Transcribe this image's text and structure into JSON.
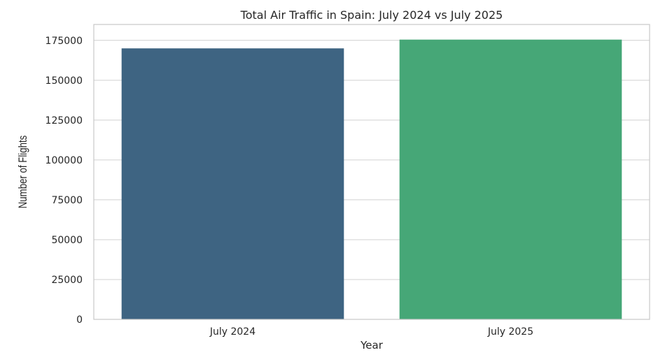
{
  "chart_data": {
    "type": "bar",
    "title": "Total Air Traffic in Spain: July 2024 vs July 2025",
    "xlabel": "Year",
    "ylabel": "Number of Flights",
    "categories": [
      "July 2024",
      "July 2025"
    ],
    "values": [
      170000,
      175500
    ],
    "colors": [
      "#3e6482",
      "#46a777"
    ],
    "ylim": [
      0,
      185000
    ],
    "yticks": [
      0,
      25000,
      50000,
      75000,
      100000,
      125000,
      150000,
      175000
    ],
    "grid": "horizontal",
    "legend": "none"
  }
}
